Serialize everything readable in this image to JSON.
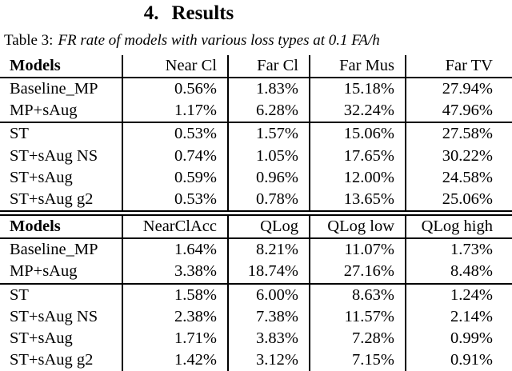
{
  "section": {
    "number": "4.",
    "name": "Results"
  },
  "caption": {
    "label": "Table 3:",
    "text": "FR rate of models with various loss types at 0.1 FA/h"
  },
  "tables": [
    {
      "headers": [
        "Models",
        "Near Cl",
        "Far Cl",
        "Far Mus",
        "Far TV"
      ],
      "group_separator_before_row": 2,
      "rows": [
        {
          "model": "Baseline_MP",
          "values": [
            "0.56%",
            "1.83%",
            "15.18%",
            "27.94%"
          ]
        },
        {
          "model": "MP+sAug",
          "values": [
            "1.17%",
            "6.28%",
            "32.24%",
            "47.96%"
          ]
        },
        {
          "model": "ST",
          "values": [
            "0.53%",
            "1.57%",
            "15.06%",
            "27.58%"
          ]
        },
        {
          "model": "ST+sAug NS",
          "values": [
            "0.74%",
            "1.05%",
            "17.65%",
            "30.22%"
          ]
        },
        {
          "model": "ST+sAug",
          "values": [
            "0.59%",
            "0.96%",
            "12.00%",
            "24.58%"
          ]
        },
        {
          "model": "ST+sAug g2",
          "values": [
            "0.53%",
            "0.78%",
            "13.65%",
            "25.06%"
          ]
        }
      ]
    },
    {
      "headers": [
        "Models",
        "NearClAcc",
        "QLog",
        "QLog low",
        "QLog high"
      ],
      "group_separator_before_row": 2,
      "rows": [
        {
          "model": "Baseline_MP",
          "values": [
            "1.64%",
            "8.21%",
            "11.07%",
            "1.73%"
          ]
        },
        {
          "model": "MP+sAug",
          "values": [
            "3.38%",
            "18.74%",
            "27.16%",
            "8.48%"
          ]
        },
        {
          "model": "ST",
          "values": [
            "1.58%",
            "6.00%",
            "8.63%",
            "1.24%"
          ]
        },
        {
          "model": "ST+sAug NS",
          "values": [
            "2.38%",
            "7.38%",
            "11.57%",
            "2.14%"
          ]
        },
        {
          "model": "ST+sAug",
          "values": [
            "1.71%",
            "3.83%",
            "7.28%",
            "0.99%"
          ]
        },
        {
          "model": "ST+sAug g2",
          "values": [
            "1.42%",
            "3.12%",
            "7.15%",
            "0.91%"
          ]
        }
      ]
    }
  ],
  "colors": {
    "text": "#000000",
    "background": "#ffffff",
    "rule": "#000000"
  }
}
